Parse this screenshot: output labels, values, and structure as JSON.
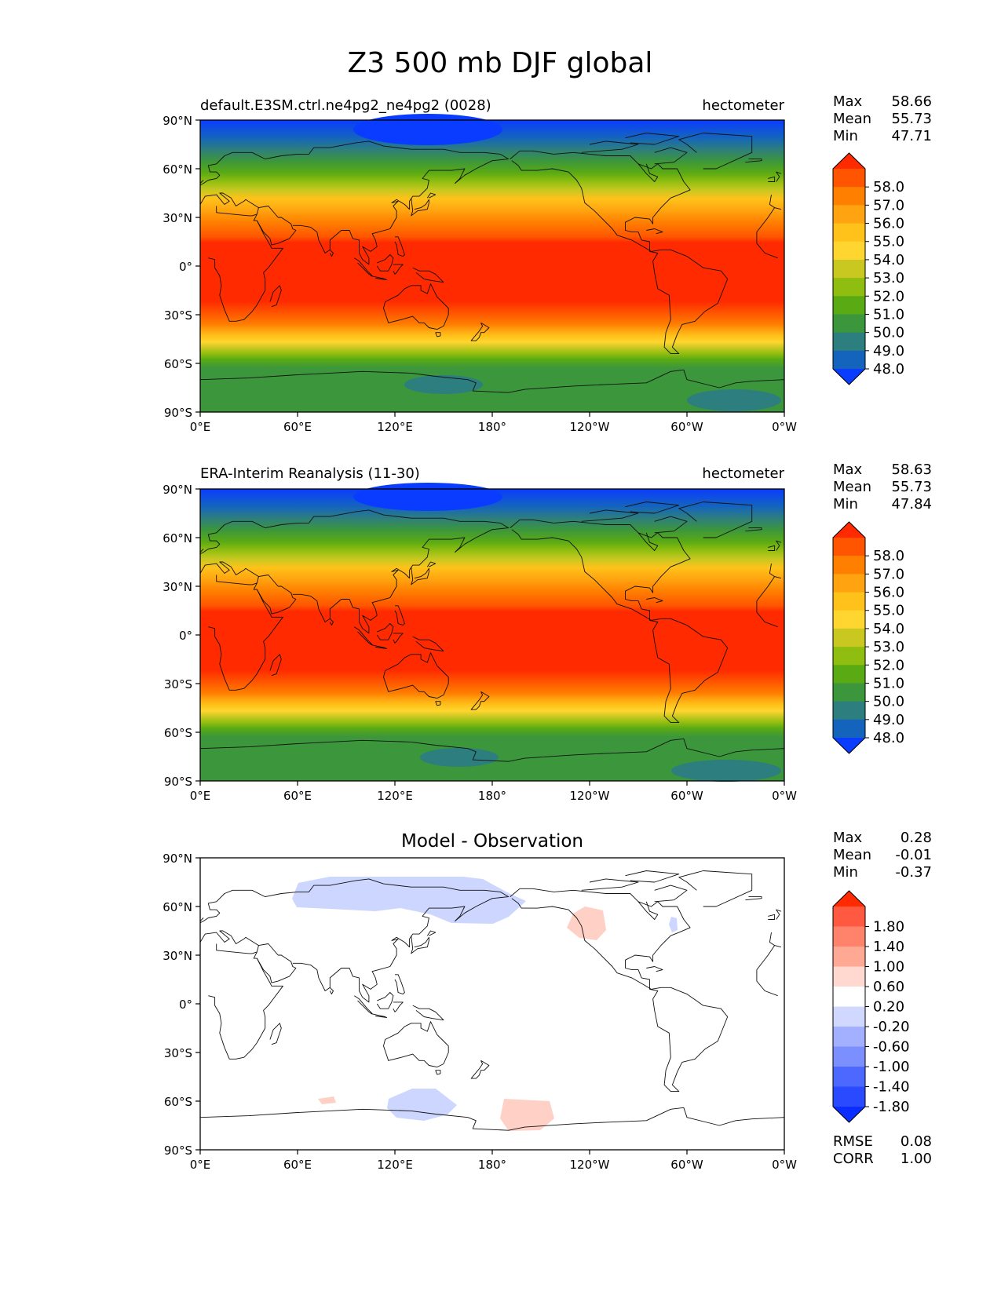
{
  "figure_title": "Z3 500 mb DJF global",
  "lon_ticks": [
    "0°E",
    "60°E",
    "120°E",
    "180°",
    "120°W",
    "60°W",
    "0°W"
  ],
  "lat_ticks": [
    "90°N",
    "60°N",
    "30°N",
    "0°",
    "30°S",
    "60°S",
    "90°S"
  ],
  "stat_labels": {
    "max": "Max",
    "mean": "Mean",
    "min": "Min",
    "rmse": "RMSE",
    "corr": "CORR"
  },
  "panels": [
    {
      "left_title": "default.E3SM.ctrl.ne4pg2_ne4pg2 (0028)",
      "center_title": "",
      "right_title": "hectometer",
      "stats": {
        "max": "58.66",
        "mean": "55.73",
        "min": "47.71"
      }
    },
    {
      "left_title": "ERA-Interim Reanalysis (11-30)",
      "center_title": "",
      "right_title": "hectometer",
      "stats": {
        "max": "58.63",
        "mean": "55.73",
        "min": "47.84"
      }
    },
    {
      "left_title": "",
      "center_title": "Model - Observation",
      "right_title": "",
      "stats": {
        "max": "0.28",
        "mean": "-0.01",
        "min": "-0.37"
      },
      "metrics": {
        "rmse": "0.08",
        "corr": "1.00"
      }
    }
  ],
  "colorbars": {
    "field": {
      "labels": [
        "58.0",
        "57.0",
        "56.0",
        "55.0",
        "54.0",
        "53.0",
        "52.0",
        "51.0",
        "50.0",
        "49.0",
        "48.0"
      ],
      "colors_top_to_bottom": [
        "#ff2a00",
        "#ff5500",
        "#ff7f00",
        "#ffa310",
        "#ffc21a",
        "#ffd530",
        "#c8c820",
        "#90be10",
        "#5aaa14",
        "#3c963c",
        "#2d7e7e",
        "#1464be",
        "#0a3cff"
      ]
    },
    "diff": {
      "labels": [
        "1.80",
        "1.40",
        "1.00",
        "0.60",
        "0.20",
        "-0.20",
        "-0.60",
        "-1.00",
        "-1.40",
        "-1.80"
      ],
      "colors_top_to_bottom": [
        "#ff2a00",
        "#ff5a41",
        "#ff826b",
        "#ffa894",
        "#ffd8d0",
        "#ffffff",
        "#d0d8ff",
        "#a2b0ff",
        "#7c8fff",
        "#4d68ff",
        "#2a4aff",
        "#0a2eff"
      ]
    }
  },
  "chart_data": [
    {
      "type": "heatmap",
      "title": "default.E3SM.ctrl.ne4pg2_ne4pg2 (0028)",
      "units": "hectometer",
      "xlim": [
        0,
        360
      ],
      "ylim": [
        -90,
        90
      ],
      "zonal_mean_profile": {
        "lat": [
          90,
          80,
          70,
          60,
          50,
          40,
          30,
          20,
          10,
          0,
          -10,
          -20,
          -30,
          -40,
          -50,
          -60,
          -70,
          -80,
          -90
        ],
        "value": [
          48.2,
          49.3,
          50.6,
          52.0,
          53.7,
          55.4,
          56.8,
          57.8,
          58.3,
          58.5,
          58.4,
          58.1,
          57.5,
          55.8,
          53.9,
          51.9,
          50.8,
          50.3,
          50.1
        ]
      },
      "max": 58.66,
      "mean": 55.73,
      "min": 47.71
    },
    {
      "type": "heatmap",
      "title": "ERA-Interim Reanalysis (11-30)",
      "units": "hectometer",
      "xlim": [
        0,
        360
      ],
      "ylim": [
        -90,
        90
      ],
      "zonal_mean_profile": {
        "lat": [
          90,
          80,
          70,
          60,
          50,
          40,
          30,
          20,
          10,
          0,
          -10,
          -20,
          -30,
          -40,
          -50,
          -60,
          -70,
          -80,
          -90
        ],
        "value": [
          48.2,
          49.3,
          50.6,
          52.0,
          53.7,
          55.4,
          56.8,
          57.8,
          58.3,
          58.5,
          58.4,
          58.1,
          57.5,
          55.8,
          53.9,
          51.9,
          50.8,
          50.3,
          50.1
        ]
      },
      "max": 58.63,
      "mean": 55.73,
      "min": 47.84
    },
    {
      "type": "heatmap",
      "title": "Model - Observation",
      "xlim": [
        0,
        360
      ],
      "ylim": [
        -90,
        90
      ],
      "anomalies": [
        {
          "lon_range": [
            55,
            195
          ],
          "lat_range": [
            62,
            78
          ],
          "value": -0.3
        },
        {
          "lon_range": [
            225,
            245
          ],
          "lat_range": [
            46,
            62
          ],
          "value": 0.3
        },
        {
          "lon_range": [
            290,
            295
          ],
          "lat_range": [
            40,
            48
          ],
          "value": -0.3
        },
        {
          "lon_range": [
            72,
            84
          ],
          "lat_range": [
            -65,
            -61
          ],
          "value": 0.3
        },
        {
          "lon_range": [
            115,
            157
          ],
          "lat_range": [
            -70,
            -57
          ],
          "value": -0.3
        },
        {
          "lon_range": [
            183,
            222
          ],
          "lat_range": [
            -78,
            -64
          ],
          "value": 0.3
        }
      ],
      "max": 0.28,
      "mean": -0.01,
      "min": -0.37,
      "rmse": 0.08,
      "corr": 1.0
    }
  ]
}
